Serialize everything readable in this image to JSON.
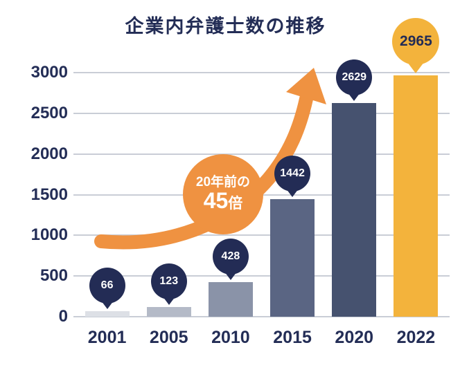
{
  "chart_data": {
    "type": "bar",
    "title": "企業内弁護士数の推移",
    "categories": [
      "2001",
      "2005",
      "2010",
      "2015",
      "2020",
      "2022"
    ],
    "values": [
      66,
      123,
      428,
      1442,
      2629,
      2965
    ],
    "xlabel": "",
    "ylabel": "",
    "ylim": [
      0,
      3000
    ],
    "yticks": [
      0,
      500,
      1000,
      1500,
      2000,
      2500,
      3000
    ],
    "grid": true,
    "legend": "none",
    "bar_colors": [
      "#dde0e6",
      "#b4bac7",
      "#8a93a8",
      "#5a6583",
      "#46526f",
      "#f3b33c"
    ],
    "pin_colors": [
      "#232c55",
      "#232c55",
      "#232c55",
      "#232c55",
      "#232c55",
      "#f3b33c"
    ],
    "pin_text_colors": [
      "#ffffff",
      "#ffffff",
      "#ffffff",
      "#ffffff",
      "#ffffff",
      "#232c55"
    ],
    "annotation": {
      "line1": "20年前の",
      "multiplier": "45",
      "unit": "倍",
      "color": "#ef9241",
      "text_color": "#ffffff"
    }
  },
  "colors": {
    "title": "#232d56",
    "axis_label": "#232d56",
    "gridline": "#c9cdd6",
    "arrow": "#ef9241",
    "background": "#ffffff"
  }
}
